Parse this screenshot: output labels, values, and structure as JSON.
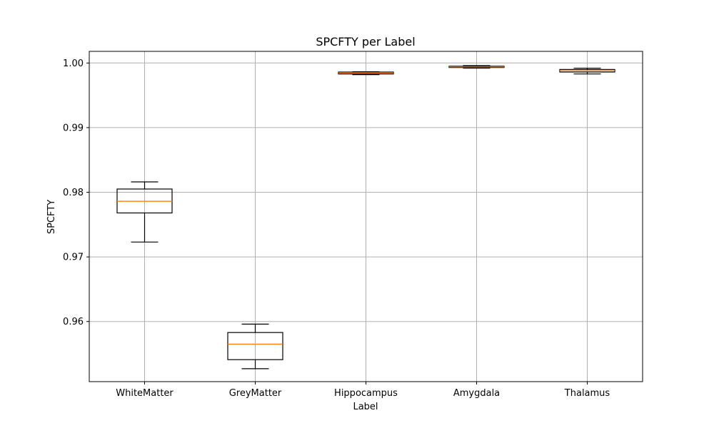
{
  "chart_data": {
    "type": "box",
    "title": "SPCFTY per Label",
    "xlabel": "Label",
    "ylabel": "SPCFTY",
    "categories": [
      "WhiteMatter",
      "GreyMatter",
      "Hippocampus",
      "Amygdala",
      "Thalamus"
    ],
    "boxes": [
      {
        "whislo": 0.9723,
        "q1": 0.9768,
        "med": 0.9786,
        "q3": 0.9805,
        "whishi": 0.9816
      },
      {
        "whislo": 0.9527,
        "q1": 0.9541,
        "med": 0.9565,
        "q3": 0.9583,
        "whishi": 0.9596
      },
      {
        "whislo": 0.9982,
        "q1": 0.9983,
        "med": 0.99845,
        "q3": 0.9986,
        "whishi": 0.99865
      },
      {
        "whislo": 0.9992,
        "q1": 0.9993,
        "med": 0.9994,
        "q3": 0.9995,
        "whishi": 0.9996
      },
      {
        "whislo": 0.9983,
        "q1": 0.9986,
        "med": 0.9988,
        "q3": 0.999,
        "whishi": 0.9992
      }
    ],
    "yticks": [
      0.96,
      0.97,
      0.98,
      0.99,
      1.0
    ],
    "ytick_labels": [
      "0.96",
      "0.97",
      "0.98",
      "0.99",
      "1.00"
    ],
    "ylim": [
      0.9507,
      1.0018
    ],
    "grid": true,
    "colors": {
      "box": "#000000",
      "median": "#ff7f0e",
      "grid": "#b0b0b0"
    }
  }
}
